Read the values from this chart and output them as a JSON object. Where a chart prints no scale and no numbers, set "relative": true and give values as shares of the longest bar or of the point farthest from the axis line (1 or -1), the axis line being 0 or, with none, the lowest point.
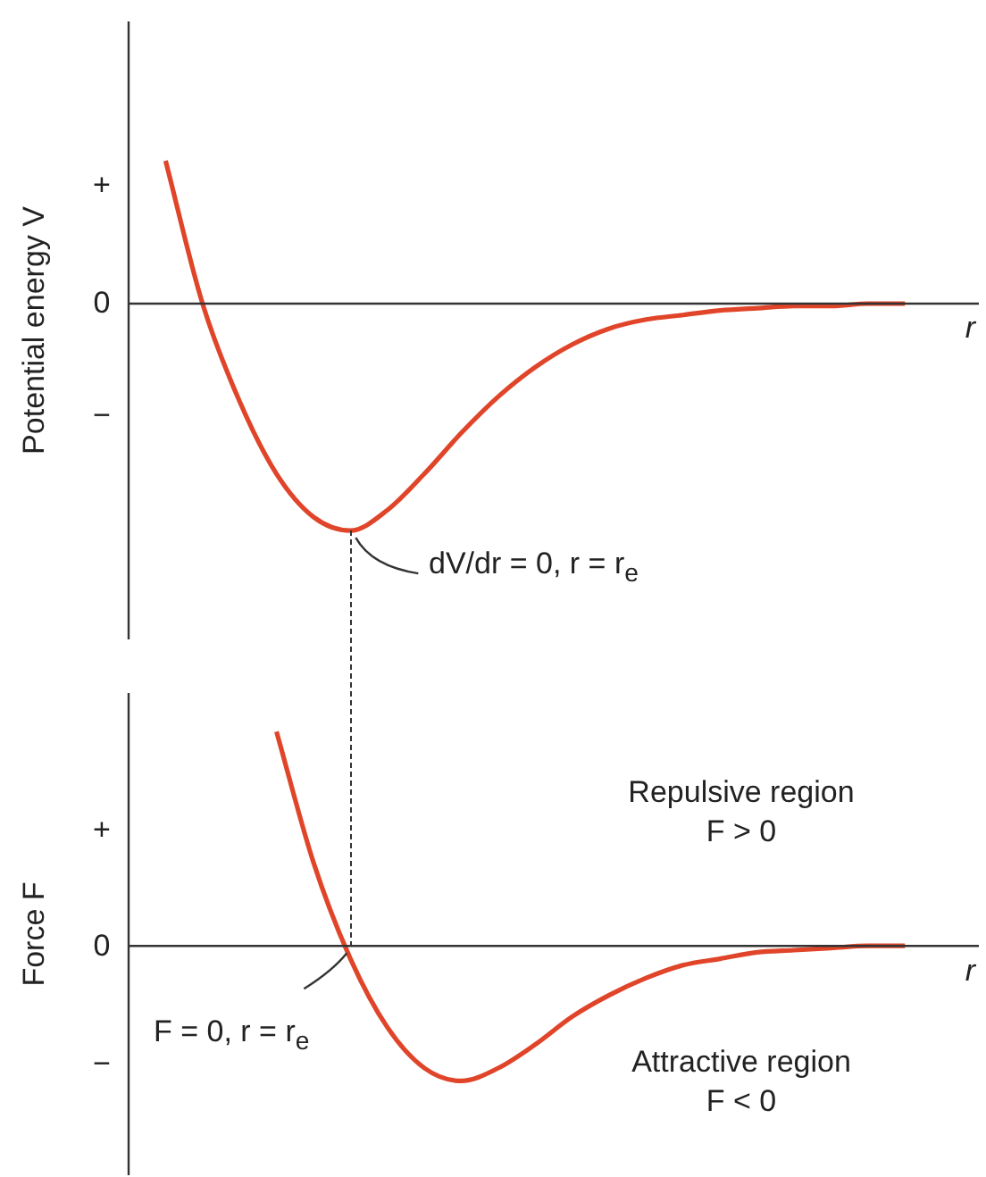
{
  "chart_data": [
    {
      "type": "line",
      "ylabel": "Potential energy V",
      "xlabel": "r",
      "relative": true,
      "marker": "none",
      "categories": [
        null,
        null,
        null,
        null,
        null,
        null,
        null,
        null,
        null,
        null,
        null,
        null,
        null,
        null,
        null,
        null,
        null,
        null,
        null,
        null,
        null,
        null,
        null,
        null
      ],
      "series": [
        {
          "color": "#e0452a",
          "values": [
            null,
            0.63,
            0.0,
            -0.43,
            -0.75,
            -0.94,
            -1.0,
            -0.91,
            -0.75,
            -0.57,
            -0.41,
            -0.28,
            -0.18,
            -0.11,
            -0.07,
            -0.05,
            -0.03,
            -0.02,
            -0.01,
            -0.01,
            0,
            0,
            null,
            null
          ]
        }
      ],
      "annotations": [
        "+",
        "0",
        "−",
        "dV/dr = 0, r = r$_{e}$"
      ]
    },
    {
      "type": "line",
      "ylabel": "Force F",
      "xlabel": "r",
      "relative": true,
      "marker": "none",
      "categories": [
        null,
        null,
        null,
        null,
        null,
        null,
        null,
        null,
        null,
        null,
        null,
        null,
        null,
        null,
        null,
        null,
        null,
        null,
        null,
        null,
        null,
        null,
        null,
        null
      ],
      "series": [
        {
          "color": "#e0452a",
          "values": [
            null,
            null,
            null,
            null,
            1.0,
            0.39,
            -0.06,
            -0.38,
            -0.57,
            -0.63,
            -0.57,
            -0.46,
            -0.33,
            -0.23,
            -0.15,
            -0.09,
            -0.06,
            -0.03,
            -0.02,
            -0.01,
            0,
            0,
            null,
            null
          ]
        }
      ],
      "annotations": [
        "+",
        "0",
        "−",
        "F = 0, r = r$_{e}$",
        "Repulsive region\nF > 0",
        "Attractive region\nF < 0"
      ]
    }
  ]
}
